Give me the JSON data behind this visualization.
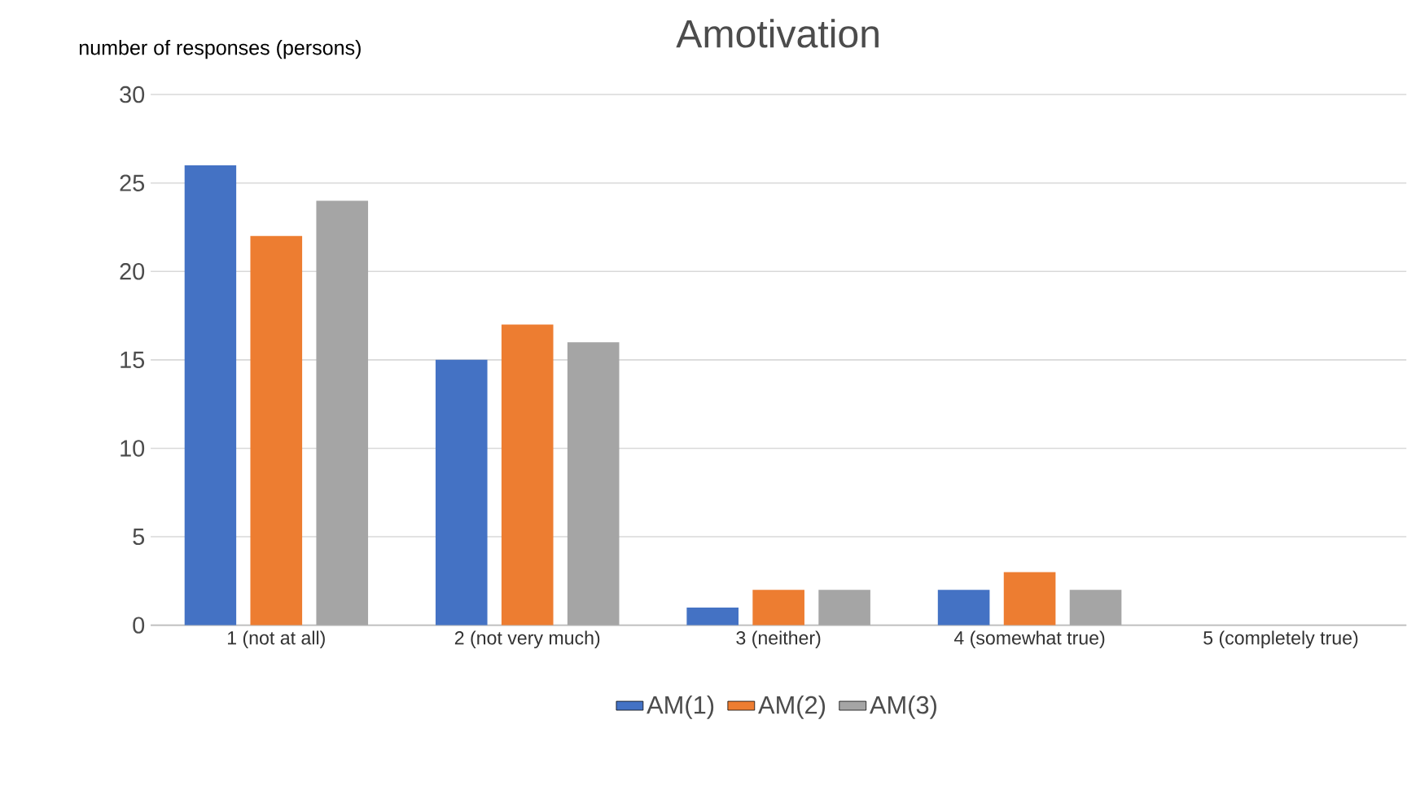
{
  "chart_data": {
    "type": "bar",
    "title": "Amotivation",
    "ylabel": "number of responses (persons)",
    "categories": [
      "1 (not at all)",
      "2 (not very much)",
      "3 (neither)",
      "4 (somewhat true)",
      "5 (completely true)"
    ],
    "series": [
      {
        "name": "AM(1)",
        "color": "#4472c4",
        "values": [
          26,
          15,
          1,
          2,
          0
        ]
      },
      {
        "name": "AM(2)",
        "color": "#ed7d31",
        "values": [
          22,
          17,
          2,
          3,
          0
        ]
      },
      {
        "name": "AM(3)",
        "color": "#a5a5a5",
        "values": [
          24,
          16,
          2,
          2,
          0
        ]
      }
    ],
    "ylim": [
      0,
      30
    ],
    "yticks": [
      0,
      5,
      10,
      15,
      20,
      25,
      30
    ],
    "grid": "y",
    "legend": "bottom"
  }
}
